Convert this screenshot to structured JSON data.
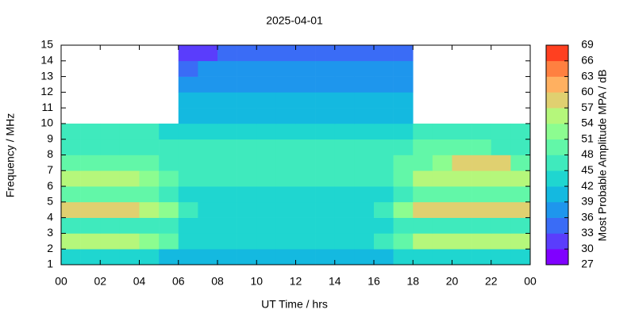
{
  "chart_data": {
    "type": "heatmap",
    "title": "2025-04-01",
    "xlabel": "UT Time / hrs",
    "ylabel": "Frequency / MHz",
    "colorbar_label": "Most Probable Amplitude MPA / dB",
    "xbins": [
      0,
      1,
      2,
      3,
      4,
      5,
      6,
      7,
      8,
      9,
      10,
      11,
      12,
      13,
      14,
      15,
      16,
      17,
      18,
      19,
      20,
      21,
      22,
      23,
      24
    ],
    "ybins": [
      1,
      2,
      3,
      4,
      5,
      6,
      7,
      8,
      9,
      10,
      11,
      12,
      13,
      14,
      15
    ],
    "xlim": [
      0,
      24
    ],
    "xticks": [
      {
        "value": 0,
        "label": "00"
      },
      {
        "value": 2,
        "label": "02"
      },
      {
        "value": 4,
        "label": "04"
      },
      {
        "value": 6,
        "label": "06"
      },
      {
        "value": 8,
        "label": "08"
      },
      10,
      12,
      14,
      16,
      18,
      20,
      22,
      {
        "value": 24,
        "label": "00"
      }
    ],
    "ylim": [
      1,
      15
    ],
    "yticks": [
      1,
      2,
      3,
      4,
      5,
      6,
      7,
      8,
      9,
      10,
      11,
      12,
      13,
      14,
      15
    ],
    "zlim": [
      27,
      69
    ],
    "zticks": [
      27,
      30,
      33,
      36,
      39,
      42,
      45,
      48,
      51,
      54,
      57,
      60,
      63,
      66,
      69
    ],
    "colors": [
      "#8000ff",
      "#5a3dfc",
      "#3a6cf6",
      "#1e96ed",
      "#14b9e0",
      "#1fd6d0",
      "#3feabd",
      "#62f7a8",
      "#8cfd90",
      "#b5f77b",
      "#e0d070",
      "#ffb060",
      "#ff8040",
      "#ff4020",
      "#ff1010"
    ],
    "values": [
      [
        42,
        42,
        42,
        42,
        42,
        40,
        40,
        40,
        40,
        40,
        40,
        40,
        40,
        40,
        40,
        40,
        40,
        42,
        42,
        42,
        42,
        42,
        42,
        42
      ],
      [
        54,
        54,
        54,
        54,
        51,
        48,
        42,
        42,
        42,
        42,
        42,
        42,
        42,
        42,
        42,
        42,
        45,
        48,
        54,
        54,
        54,
        54,
        54,
        54
      ],
      [
        45,
        45,
        45,
        45,
        45,
        45,
        42,
        42,
        42,
        42,
        42,
        42,
        42,
        42,
        42,
        42,
        42,
        45,
        45,
        45,
        45,
        45,
        45,
        45
      ],
      [
        57,
        57,
        57,
        57,
        54,
        51,
        45,
        42,
        42,
        42,
        42,
        42,
        42,
        42,
        42,
        42,
        45,
        51,
        57,
        57,
        57,
        57,
        57,
        57
      ],
      [
        48,
        48,
        48,
        48,
        48,
        45,
        42,
        42,
        42,
        42,
        42,
        42,
        42,
        42,
        42,
        42,
        42,
        45,
        48,
        48,
        48,
        48,
        48,
        48
      ],
      [
        54,
        54,
        54,
        54,
        51,
        48,
        45,
        45,
        45,
        45,
        45,
        45,
        45,
        45,
        45,
        45,
        45,
        48,
        54,
        54,
        54,
        54,
        54,
        54
      ],
      [
        48,
        48,
        48,
        48,
        48,
        45,
        45,
        45,
        45,
        45,
        45,
        45,
        45,
        45,
        45,
        45,
        45,
        48,
        48,
        51,
        57,
        57,
        57,
        48
      ],
      [
        45,
        45,
        45,
        45,
        45,
        45,
        45,
        45,
        45,
        45,
        45,
        45,
        45,
        45,
        45,
        45,
        45,
        45,
        48,
        48,
        48,
        48,
        45,
        45
      ],
      [
        45,
        45,
        45,
        45,
        45,
        42,
        42,
        42,
        42,
        42,
        42,
        42,
        42,
        42,
        42,
        42,
        42,
        42,
        45,
        45,
        45,
        45,
        45,
        45
      ],
      [
        null,
        null,
        null,
        null,
        null,
        null,
        39,
        39,
        39,
        39,
        39,
        39,
        39,
        39,
        39,
        39,
        39,
        39,
        null,
        null,
        null,
        null,
        null,
        null
      ],
      [
        null,
        null,
        null,
        null,
        null,
        null,
        39,
        39,
        39,
        39,
        39,
        39,
        39,
        39,
        39,
        39,
        39,
        39,
        null,
        null,
        null,
        null,
        null,
        null
      ],
      [
        null,
        null,
        null,
        null,
        null,
        null,
        36,
        36,
        36,
        36,
        36,
        36,
        36,
        36,
        36,
        36,
        36,
        36,
        null,
        null,
        null,
        null,
        null,
        null
      ],
      [
        null,
        null,
        null,
        null,
        null,
        null,
        33,
        36,
        36,
        36,
        36,
        36,
        36,
        36,
        36,
        36,
        36,
        36,
        null,
        null,
        null,
        null,
        null,
        null
      ],
      [
        null,
        null,
        null,
        null,
        null,
        null,
        30,
        30,
        33,
        33,
        33,
        33,
        33,
        33,
        33,
        33,
        33,
        33,
        null,
        null,
        null,
        null,
        null,
        null
      ]
    ]
  }
}
